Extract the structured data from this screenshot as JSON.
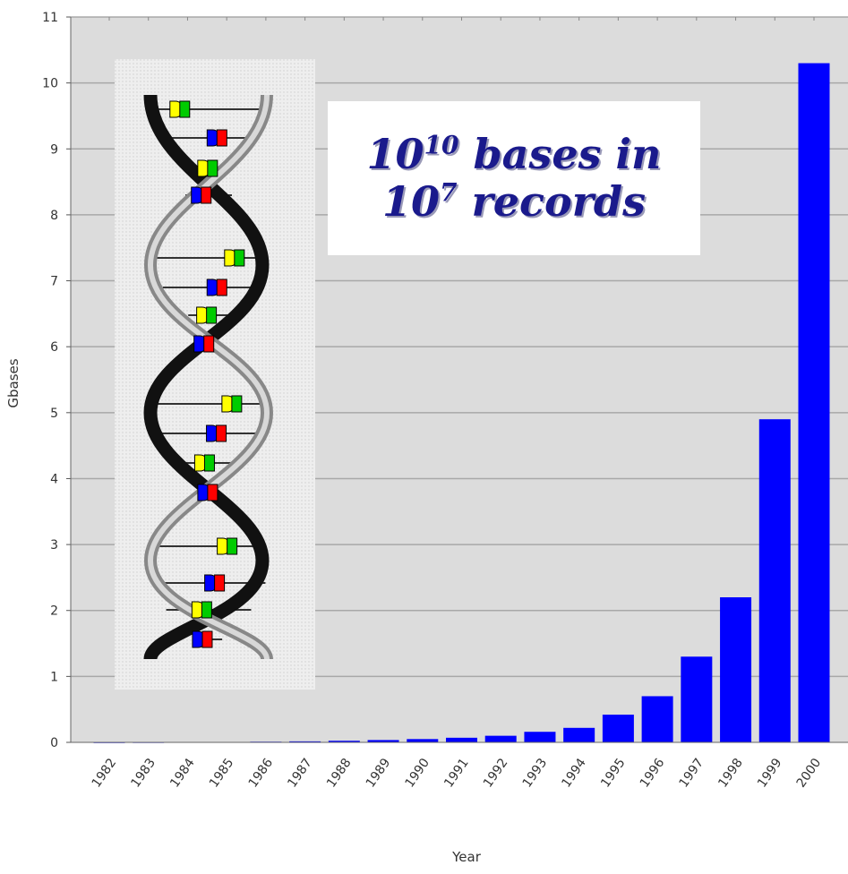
{
  "chart_data": {
    "type": "bar",
    "categories": [
      "1982",
      "1983",
      "1984",
      "1985",
      "1986",
      "1987",
      "1988",
      "1989",
      "1990",
      "1991",
      "1992",
      "1993",
      "1994",
      "1995",
      "1996",
      "1997",
      "1998",
      "1999",
      "2000"
    ],
    "values": [
      0.0007,
      0.002,
      0.004,
      0.006,
      0.01,
      0.015,
      0.024,
      0.035,
      0.05,
      0.07,
      0.1,
      0.16,
      0.22,
      0.42,
      0.7,
      1.3,
      2.2,
      4.9,
      10.3
    ],
    "xlabel": "Year",
    "ylabel": "Gbases",
    "ylim": [
      0,
      11
    ],
    "yticks": [
      0,
      1,
      2,
      3,
      4,
      5,
      6,
      7,
      8,
      9,
      10,
      11
    ],
    "grid": true,
    "bar_color": "#0000ff",
    "plot_background": "#dcdcdc",
    "gridline_color": "#a8a8a8"
  },
  "annotation": {
    "line1_base": "10",
    "line1_exp": "10",
    "line1_text": " bases in",
    "line2_base": "10",
    "line2_exp": "7",
    "line2_text": " records",
    "text_color": "#1a1a8c"
  },
  "illustration": {
    "icon": "dna-double-helix-icon",
    "base_colors": [
      "#ffff00",
      "#00cc00",
      "#0000ff",
      "#ff0000"
    ]
  }
}
